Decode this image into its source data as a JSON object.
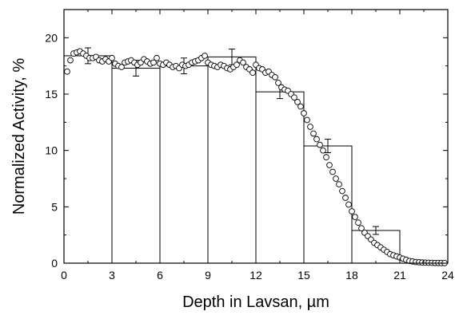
{
  "chart_data": {
    "type": "scatter",
    "xlabel": "Depth in Lavsan, µm",
    "ylabel": "Normalized Activity, %",
    "xlim": [
      0,
      24
    ],
    "ylim": [
      0,
      22.5
    ],
    "xticks": [
      0,
      3,
      6,
      9,
      12,
      15,
      18,
      21,
      24
    ],
    "yticks": [
      0,
      5,
      10,
      15,
      20
    ],
    "grid": false,
    "legend": "none",
    "series": [
      {
        "kind": "histogram",
        "bins": [
          {
            "x0": 0,
            "x1": 3,
            "value": 18.4
          },
          {
            "x0": 3,
            "x1": 6,
            "value": 17.3
          },
          {
            "x0": 6,
            "x1": 9,
            "value": 17.5
          },
          {
            "x0": 9,
            "x1": 12,
            "value": 18.3
          },
          {
            "x0": 12,
            "x1": 15,
            "value": 15.2
          },
          {
            "x0": 15,
            "x1": 18,
            "value": 10.4
          },
          {
            "x0": 18,
            "x1": 21,
            "value": 2.9
          },
          {
            "x0": 21,
            "x1": 24,
            "value": 0.0
          }
        ],
        "error_bars": [
          {
            "x": 1.5,
            "y": 18.4,
            "err": 0.7
          },
          {
            "x": 4.5,
            "y": 17.3,
            "err": 0.7
          },
          {
            "x": 7.5,
            "y": 17.5,
            "err": 0.7
          },
          {
            "x": 10.5,
            "y": 18.3,
            "err": 0.7
          },
          {
            "x": 13.5,
            "y": 15.2,
            "err": 0.6
          },
          {
            "x": 16.5,
            "y": 10.4,
            "err": 0.6
          },
          {
            "x": 19.5,
            "y": 2.9,
            "err": 0.35
          }
        ]
      },
      {
        "kind": "points",
        "marker": "open-circle",
        "x": [
          0.2,
          0.4,
          0.6,
          0.8,
          1.0,
          1.2,
          1.4,
          1.6,
          1.8,
          2.0,
          2.2,
          2.4,
          2.6,
          2.8,
          3.0,
          3.2,
          3.4,
          3.6,
          3.8,
          4.0,
          4.2,
          4.4,
          4.6,
          4.8,
          5.0,
          5.2,
          5.4,
          5.6,
          5.8,
          6.0,
          6.2,
          6.4,
          6.6,
          6.8,
          7.0,
          7.2,
          7.4,
          7.6,
          7.8,
          8.0,
          8.2,
          8.4,
          8.6,
          8.8,
          9.0,
          9.2,
          9.4,
          9.6,
          9.8,
          10.0,
          10.2,
          10.4,
          10.6,
          10.8,
          11.0,
          11.2,
          11.4,
          11.6,
          11.8,
          12.0,
          12.2,
          12.4,
          12.6,
          12.8,
          13.0,
          13.2,
          13.4,
          13.6,
          13.8,
          14.0,
          14.2,
          14.4,
          14.6,
          14.8,
          15.0,
          15.2,
          15.4,
          15.6,
          15.8,
          16.0,
          16.2,
          16.4,
          16.6,
          16.8,
          17.0,
          17.2,
          17.4,
          17.6,
          17.8,
          18.0,
          18.2,
          18.4,
          18.6,
          18.8,
          19.0,
          19.2,
          19.4,
          19.6,
          19.8,
          20.0,
          20.2,
          20.4,
          20.6,
          20.8,
          21.0,
          21.2,
          21.4,
          21.6,
          21.8,
          22.0,
          22.2,
          22.4,
          22.6,
          22.8,
          23.0,
          23.2,
          23.4,
          23.6,
          23.8
        ],
        "y": [
          17.0,
          18.0,
          18.6,
          18.7,
          18.8,
          18.6,
          18.4,
          18.2,
          18.2,
          18.3,
          18.0,
          17.9,
          18.1,
          17.9,
          18.2,
          17.7,
          17.5,
          17.4,
          17.8,
          17.9,
          18.0,
          17.8,
          17.6,
          17.8,
          18.1,
          17.9,
          17.7,
          17.8,
          18.2,
          17.7,
          17.6,
          17.8,
          17.6,
          17.4,
          17.5,
          17.3,
          17.6,
          17.5,
          17.6,
          17.8,
          17.9,
          18.0,
          18.2,
          18.4,
          17.8,
          17.6,
          17.5,
          17.4,
          17.6,
          17.5,
          17.3,
          17.2,
          17.4,
          17.6,
          18.0,
          17.8,
          17.4,
          17.2,
          16.9,
          17.6,
          17.3,
          17.2,
          16.9,
          17.0,
          16.7,
          16.5,
          16.0,
          15.6,
          15.4,
          15.3,
          15.0,
          14.7,
          14.3,
          13.9,
          13.3,
          12.7,
          12.1,
          11.5,
          11.0,
          10.5,
          10.0,
          9.4,
          8.7,
          8.1,
          7.5,
          7.0,
          6.4,
          5.8,
          5.2,
          4.6,
          4.1,
          3.6,
          3.1,
          2.7,
          2.4,
          2.1,
          1.8,
          1.6,
          1.4,
          1.2,
          1.0,
          0.8,
          0.7,
          0.6,
          0.5,
          0.4,
          0.3,
          0.2,
          0.15,
          0.1,
          0.08,
          0.06,
          0.05,
          0.04,
          0.03,
          0.02,
          0.02,
          0.01,
          0.01
        ]
      }
    ]
  }
}
